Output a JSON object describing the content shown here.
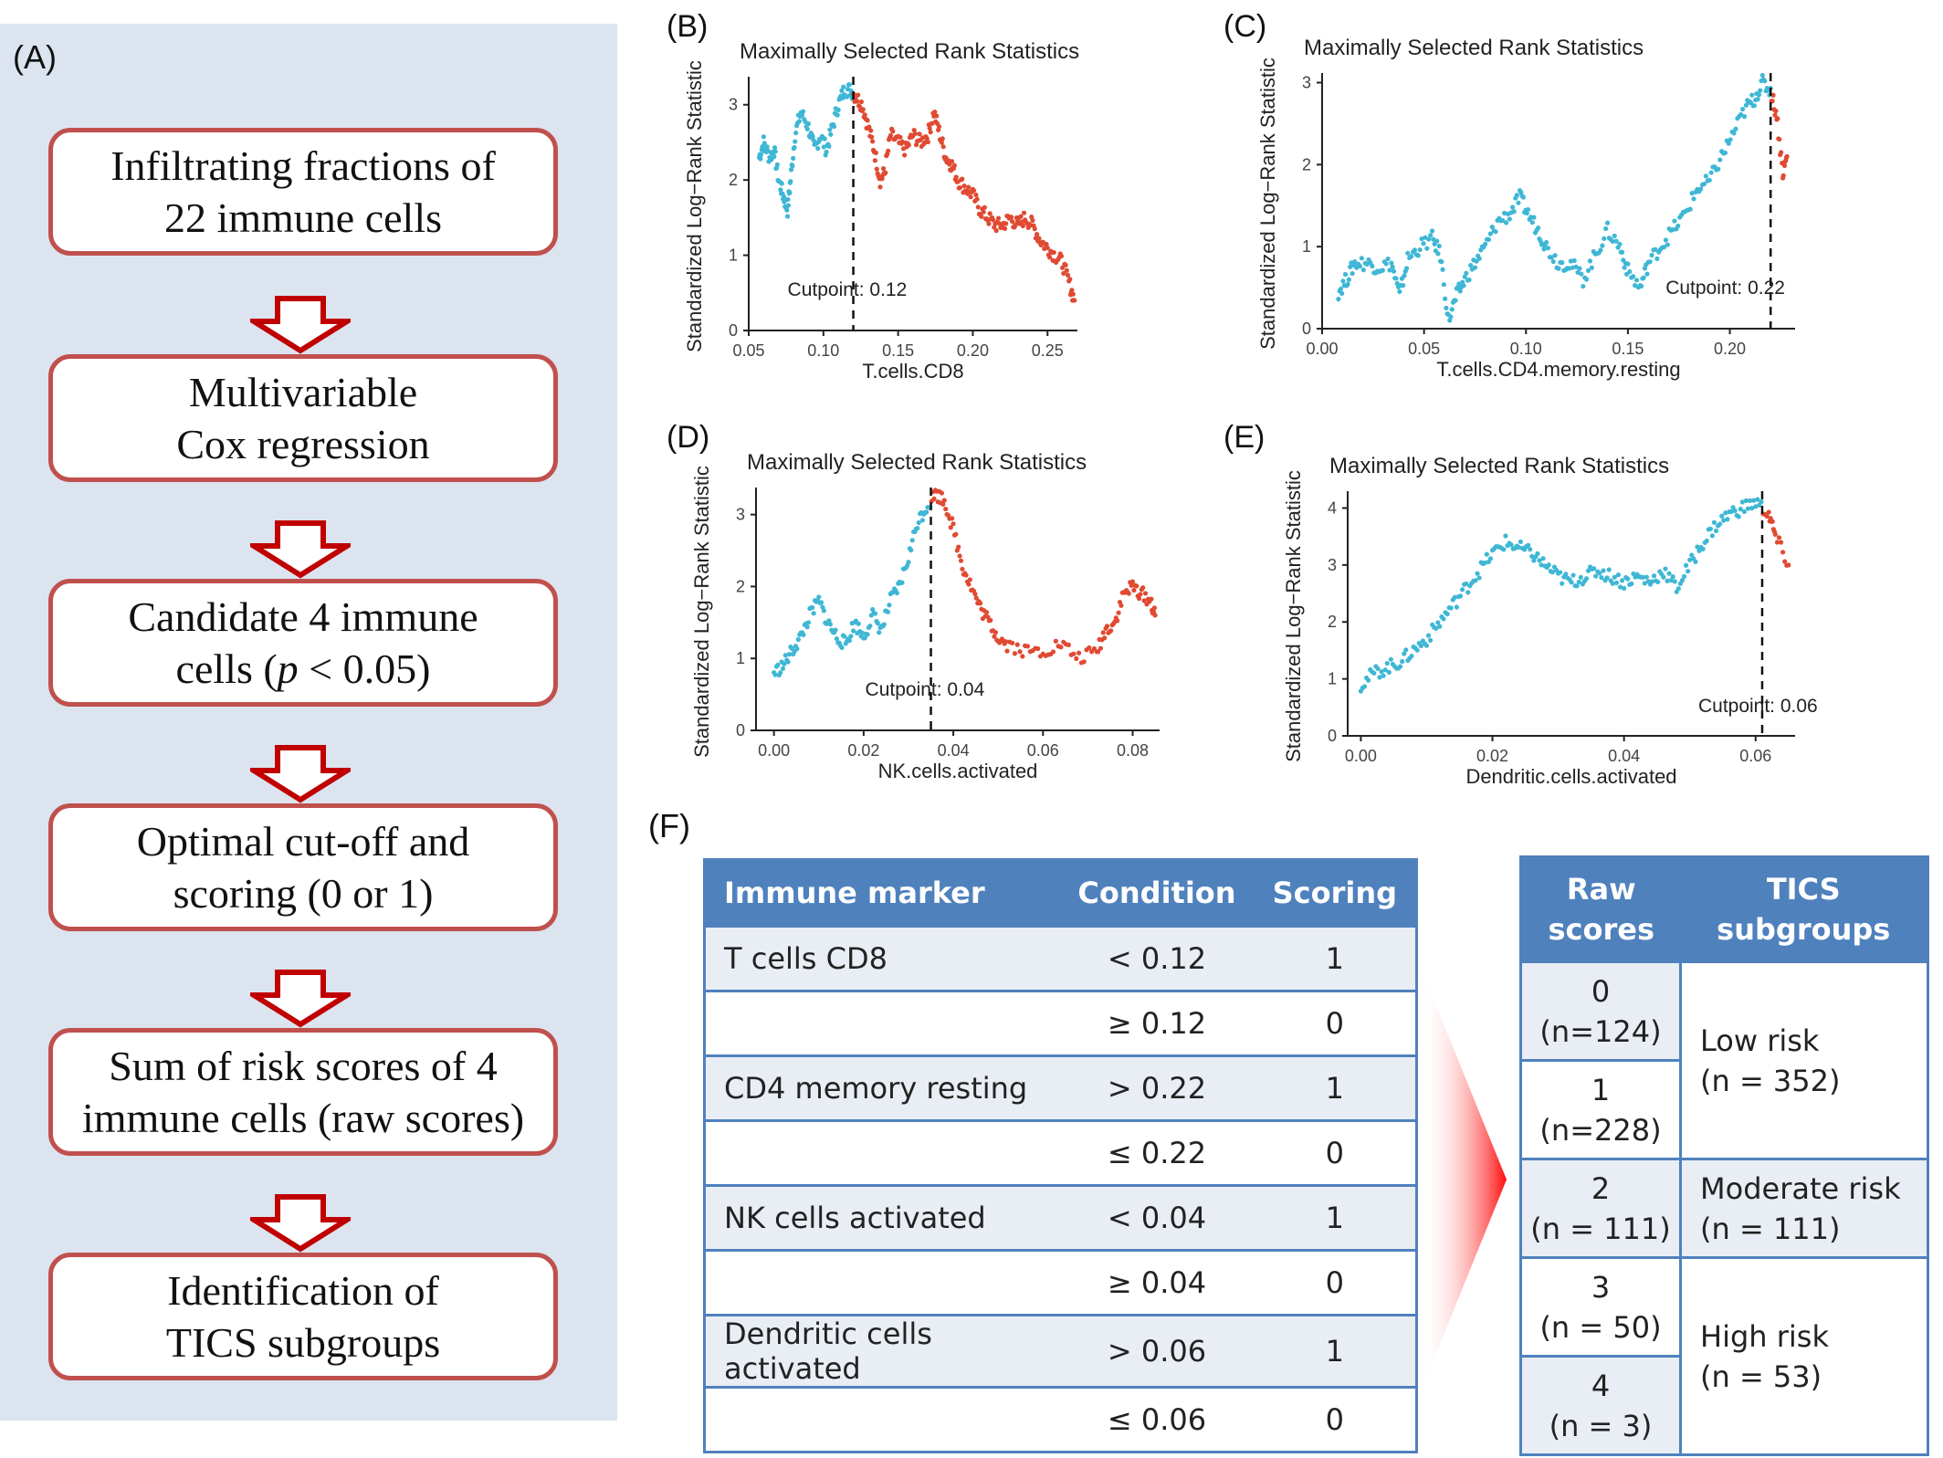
{
  "panel_a": {
    "letter": "(A)",
    "steps": [
      "Infiltrating fractions of\n22 immune cells",
      "Multivariable\nCox regression",
      "Candidate 4 immune\ncells (",
      "Optimal cut-off and\nscoring (0 or 1)",
      "Sum of risk scores of 4\nimmune cells (raw scores)",
      "Identification of\nTICS subgroups"
    ],
    "step3_italic": "p",
    "step3_tail": " < 0.05)"
  },
  "colors": {
    "below": "#3fb7d4",
    "above": "#e04a32",
    "arrow": "#c00000",
    "box_border": "#c0504d",
    "panel_bg": "#dce4ef",
    "table_header": "#4f81bd"
  },
  "chart_data": [
    {
      "letter": "(B)",
      "type": "scatter",
      "title": "Maximally Selected Rank Statistics",
      "xlabel": "T.cells.CD8",
      "ylabel": "Standardized Log−Rank Statistic",
      "xlim": [
        0.05,
        0.27
      ],
      "ylim": [
        0,
        3.3
      ],
      "xticks": [
        0.05,
        0.1,
        0.15,
        0.2,
        0.25
      ],
      "xticklabels": [
        "0.05",
        "0.10",
        "0.15",
        "0.20",
        "0.25"
      ],
      "yticks": [
        0,
        1,
        2,
        3
      ],
      "yticklabels": [
        "0",
        "1",
        "2",
        "3"
      ],
      "cutpoint": 0.12,
      "cutpoint_label": "Cutpoint: 0.12",
      "curve": [
        [
          0.057,
          2.3
        ],
        [
          0.06,
          2.5
        ],
        [
          0.064,
          2.3
        ],
        [
          0.067,
          2.4
        ],
        [
          0.07,
          2.0
        ],
        [
          0.073,
          1.8
        ],
        [
          0.076,
          1.6
        ],
        [
          0.078,
          2.0
        ],
        [
          0.081,
          2.6
        ],
        [
          0.085,
          2.9
        ],
        [
          0.09,
          2.7
        ],
        [
          0.094,
          2.4
        ],
        [
          0.098,
          2.6
        ],
        [
          0.102,
          2.4
        ],
        [
          0.106,
          2.7
        ],
        [
          0.11,
          3.0
        ],
        [
          0.114,
          3.2
        ],
        [
          0.118,
          3.2
        ],
        [
          0.122,
          3.1
        ],
        [
          0.126,
          3.0
        ],
        [
          0.13,
          2.7
        ],
        [
          0.134,
          2.4
        ],
        [
          0.138,
          2.0
        ],
        [
          0.141,
          2.1
        ],
        [
          0.145,
          2.6
        ],
        [
          0.15,
          2.5
        ],
        [
          0.155,
          2.4
        ],
        [
          0.16,
          2.6
        ],
        [
          0.165,
          2.5
        ],
        [
          0.17,
          2.6
        ],
        [
          0.174,
          2.9
        ],
        [
          0.178,
          2.6
        ],
        [
          0.182,
          2.3
        ],
        [
          0.186,
          2.2
        ],
        [
          0.19,
          2.0
        ],
        [
          0.195,
          1.9
        ],
        [
          0.2,
          1.8
        ],
        [
          0.205,
          1.6
        ],
        [
          0.21,
          1.5
        ],
        [
          0.215,
          1.4
        ],
        [
          0.22,
          1.4
        ],
        [
          0.225,
          1.5
        ],
        [
          0.23,
          1.4
        ],
        [
          0.235,
          1.5
        ],
        [
          0.24,
          1.4
        ],
        [
          0.245,
          1.2
        ],
        [
          0.25,
          1.1
        ],
        [
          0.255,
          1.0
        ],
        [
          0.26,
          0.9
        ],
        [
          0.265,
          0.6
        ],
        [
          0.268,
          0.4
        ]
      ]
    },
    {
      "letter": "(C)",
      "type": "scatter",
      "title": "Maximally Selected Rank Statistics",
      "xlabel": "T.cells.CD4.memory.resting",
      "ylabel": "Standardized Log−Rank Statistic",
      "xlim": [
        0.0,
        0.232
      ],
      "ylim": [
        0,
        3.05
      ],
      "xticks": [
        0.0,
        0.05,
        0.1,
        0.15,
        0.2
      ],
      "xticklabels": [
        "0.00",
        "0.05",
        "0.10",
        "0.15",
        "0.20"
      ],
      "yticks": [
        0,
        1,
        2,
        3
      ],
      "yticklabels": [
        "0",
        "1",
        "2",
        "3"
      ],
      "cutpoint": 0.22,
      "cutpoint_label": "Cutpoint: 0.22",
      "curve": [
        [
          0.008,
          0.45
        ],
        [
          0.012,
          0.6
        ],
        [
          0.016,
          0.8
        ],
        [
          0.022,
          0.8
        ],
        [
          0.028,
          0.75
        ],
        [
          0.034,
          0.8
        ],
        [
          0.038,
          0.4
        ],
        [
          0.042,
          0.85
        ],
        [
          0.048,
          1.0
        ],
        [
          0.054,
          1.1
        ],
        [
          0.058,
          0.9
        ],
        [
          0.062,
          0.1
        ],
        [
          0.066,
          0.4
        ],
        [
          0.07,
          0.6
        ],
        [
          0.075,
          0.8
        ],
        [
          0.08,
          1.0
        ],
        [
          0.086,
          1.3
        ],
        [
          0.092,
          1.4
        ],
        [
          0.097,
          1.6
        ],
        [
          0.101,
          1.4
        ],
        [
          0.106,
          1.2
        ],
        [
          0.11,
          1.0
        ],
        [
          0.116,
          0.8
        ],
        [
          0.122,
          0.8
        ],
        [
          0.128,
          0.6
        ],
        [
          0.134,
          0.9
        ],
        [
          0.14,
          1.2
        ],
        [
          0.146,
          1.0
        ],
        [
          0.15,
          0.7
        ],
        [
          0.156,
          0.5
        ],
        [
          0.16,
          0.8
        ],
        [
          0.166,
          1.0
        ],
        [
          0.172,
          1.2
        ],
        [
          0.178,
          1.4
        ],
        [
          0.184,
          1.7
        ],
        [
          0.19,
          1.8
        ],
        [
          0.196,
          2.1
        ],
        [
          0.202,
          2.4
        ],
        [
          0.208,
          2.7
        ],
        [
          0.212,
          2.8
        ],
        [
          0.216,
          3.0
        ],
        [
          0.22,
          2.9
        ],
        [
          0.223,
          2.6
        ],
        [
          0.226,
          1.9
        ],
        [
          0.228,
          2.1
        ]
      ]
    },
    {
      "letter": "(D)",
      "type": "scatter",
      "title": "Maximally Selected Rank Statistics",
      "xlabel": "NK.cells.activated",
      "ylabel": "Standardized Log−Rank Statistic",
      "xlim": [
        -0.004,
        0.086
      ],
      "ylim": [
        0,
        3.3
      ],
      "xticks": [
        0.0,
        0.02,
        0.04,
        0.06,
        0.08
      ],
      "xticklabels": [
        "0.00",
        "0.02",
        "0.04",
        "0.06",
        "0.08"
      ],
      "yticks": [
        0,
        1,
        2,
        3
      ],
      "yticklabels": [
        "0",
        "1",
        "2",
        "3"
      ],
      "cutpoint": 0.035,
      "cutpoint_label": "Cutpoint: 0.04",
      "curve": [
        [
          0.0,
          0.8
        ],
        [
          0.002,
          0.9
        ],
        [
          0.004,
          1.1
        ],
        [
          0.006,
          1.3
        ],
        [
          0.008,
          1.6
        ],
        [
          0.01,
          1.8
        ],
        [
          0.012,
          1.5
        ],
        [
          0.014,
          1.3
        ],
        [
          0.016,
          1.2
        ],
        [
          0.018,
          1.5
        ],
        [
          0.02,
          1.3
        ],
        [
          0.022,
          1.6
        ],
        [
          0.024,
          1.4
        ],
        [
          0.026,
          1.8
        ],
        [
          0.028,
          2.0
        ],
        [
          0.03,
          2.4
        ],
        [
          0.032,
          2.9
        ],
        [
          0.034,
          3.1
        ],
        [
          0.036,
          3.3
        ],
        [
          0.038,
          3.2
        ],
        [
          0.04,
          2.8
        ],
        [
          0.042,
          2.3
        ],
        [
          0.044,
          2.0
        ],
        [
          0.046,
          1.7
        ],
        [
          0.048,
          1.5
        ],
        [
          0.05,
          1.3
        ],
        [
          0.052,
          1.2
        ],
        [
          0.056,
          1.1
        ],
        [
          0.06,
          1.1
        ],
        [
          0.064,
          1.2
        ],
        [
          0.068,
          1.0
        ],
        [
          0.072,
          1.1
        ],
        [
          0.074,
          1.4
        ],
        [
          0.076,
          1.5
        ],
        [
          0.078,
          1.9
        ],
        [
          0.08,
          2.0
        ],
        [
          0.082,
          1.9
        ],
        [
          0.084,
          1.8
        ],
        [
          0.085,
          1.6
        ]
      ]
    },
    {
      "letter": "(E)",
      "type": "scatter",
      "title": "Maximally Selected Rank Statistics",
      "xlabel": "Dendritic.cells.activated",
      "ylabel": "Standardized Log−Rank Statistic",
      "xlim": [
        -0.002,
        0.066
      ],
      "ylim": [
        0,
        4.2
      ],
      "xticks": [
        0.0,
        0.02,
        0.04,
        0.06
      ],
      "xticklabels": [
        "0.00",
        "0.02",
        "0.04",
        "0.06"
      ],
      "yticks": [
        0,
        1,
        2,
        3,
        4
      ],
      "yticklabels": [
        "0",
        "1",
        "2",
        "3",
        "4"
      ],
      "cutpoint": 0.061,
      "cutpoint_label": "Cutpoint: 0.06",
      "curve": [
        [
          0.0,
          0.9
        ],
        [
          0.002,
          1.1
        ],
        [
          0.004,
          1.2
        ],
        [
          0.006,
          1.3
        ],
        [
          0.008,
          1.5
        ],
        [
          0.01,
          1.7
        ],
        [
          0.012,
          2.0
        ],
        [
          0.014,
          2.3
        ],
        [
          0.016,
          2.6
        ],
        [
          0.018,
          2.9
        ],
        [
          0.02,
          3.2
        ],
        [
          0.022,
          3.4
        ],
        [
          0.024,
          3.3
        ],
        [
          0.026,
          3.2
        ],
        [
          0.028,
          3.0
        ],
        [
          0.03,
          2.8
        ],
        [
          0.032,
          2.7
        ],
        [
          0.034,
          2.8
        ],
        [
          0.036,
          2.9
        ],
        [
          0.038,
          2.8
        ],
        [
          0.04,
          2.7
        ],
        [
          0.042,
          2.8
        ],
        [
          0.044,
          2.7
        ],
        [
          0.046,
          2.9
        ],
        [
          0.048,
          2.6
        ],
        [
          0.05,
          3.0
        ],
        [
          0.052,
          3.4
        ],
        [
          0.054,
          3.7
        ],
        [
          0.056,
          3.9
        ],
        [
          0.058,
          4.0
        ],
        [
          0.06,
          4.1
        ],
        [
          0.062,
          3.9
        ],
        [
          0.063,
          3.5
        ],
        [
          0.065,
          3.0
        ]
      ]
    }
  ],
  "panel_f": {
    "letter": "(F)",
    "marker_table": {
      "headers": [
        "Immune marker",
        "Condition",
        "Scoring"
      ],
      "rows": [
        [
          "T cells CD8",
          "< 0.12",
          "1"
        ],
        [
          "",
          "≥ 0.12",
          "0"
        ],
        [
          "CD4 memory resting",
          "> 0.22",
          "1"
        ],
        [
          "",
          "≤ 0.22",
          "0"
        ],
        [
          "NK cells activated",
          "< 0.04",
          "1"
        ],
        [
          "",
          "≥ 0.04",
          "0"
        ],
        [
          "Dendritic cells activated",
          "> 0.06",
          "1"
        ],
        [
          "",
          "≤ 0.06",
          "0"
        ]
      ]
    },
    "risk_table": {
      "headers": [
        "Raw\nscores",
        "TICS\nsubgroups"
      ],
      "scores": [
        "0\n(n=124)",
        "1\n(n=228)",
        "2\n(n = 111)",
        "3\n(n = 50)",
        "4\n(n = 3)"
      ],
      "groups": [
        "Low risk\n(n = 352)",
        "Moderate risk\n(n = 111)",
        "High risk\n(n = 53)"
      ]
    }
  }
}
